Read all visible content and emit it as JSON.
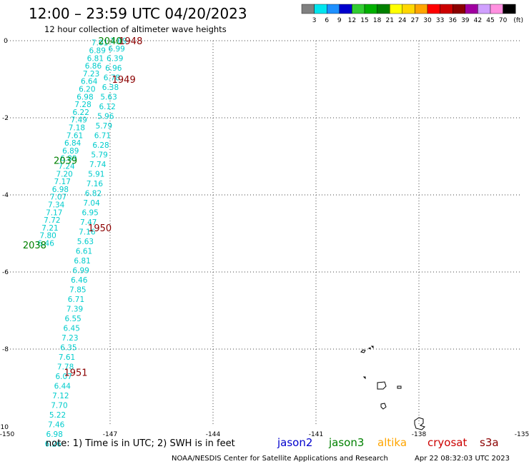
{
  "header": {
    "title": "12:00 – 23:59 UTC 04/20/2023",
    "subtitle": "12 hour collection of altimeter wave heights"
  },
  "color_scale": {
    "labels": [
      "3",
      "6",
      "9",
      "12",
      "15",
      "18",
      "21",
      "24",
      "27",
      "30",
      "33",
      "36",
      "39",
      "42",
      "45",
      "70"
    ],
    "unit": "(ft)",
    "colors": [
      "#808080",
      "#00e5ee",
      "#1e90ff",
      "#0000cd",
      "#32cd32",
      "#00b000",
      "#008000",
      "#ffff00",
      "#ffd700",
      "#ffa500",
      "#ff0000",
      "#cc0000",
      "#8b0000",
      "#a000a0",
      "#d0a0ff",
      "#ff90e0",
      "#000000"
    ]
  },
  "chart_data": {
    "type": "scatter",
    "x_ticks": [
      "-150",
      "-147",
      "-144",
      "-141",
      "-138",
      "-135"
    ],
    "y_ticks": [
      "0",
      "-2",
      "-4",
      "-6",
      "-8",
      "-10"
    ],
    "xlim": [
      -150,
      -135
    ],
    "ylim": [
      -10,
      0
    ],
    "grid": true,
    "tracks": [
      {
        "satellite": "jason3",
        "color": "#00cccc",
        "pass_labels": [
          {
            "text": "2040",
            "lon": -147.0,
            "lat": 0.0,
            "color": "#008000"
          },
          {
            "text": "2039",
            "lon": -148.3,
            "lat": -3.1,
            "color": "#008000"
          },
          {
            "text": "2038",
            "lon": -149.2,
            "lat": -5.3,
            "color": "#008000"
          }
        ],
        "points": [
          {
            "lon": -147.3,
            "lat": -0.05,
            "value": "7.01"
          },
          {
            "lon": -147.37,
            "lat": -0.25,
            "value": "6.89"
          },
          {
            "lon": -147.43,
            "lat": -0.45,
            "value": "6.81"
          },
          {
            "lon": -147.49,
            "lat": -0.65,
            "value": "6.86"
          },
          {
            "lon": -147.55,
            "lat": -0.85,
            "value": "7.23"
          },
          {
            "lon": -147.61,
            "lat": -1.05,
            "value": "6.64"
          },
          {
            "lon": -147.67,
            "lat": -1.25,
            "value": "6.20"
          },
          {
            "lon": -147.73,
            "lat": -1.45,
            "value": "6.98"
          },
          {
            "lon": -147.79,
            "lat": -1.65,
            "value": "7.28"
          },
          {
            "lon": -147.85,
            "lat": -1.85,
            "value": "6.22"
          },
          {
            "lon": -147.91,
            "lat": -2.05,
            "value": "7.49"
          },
          {
            "lon": -147.97,
            "lat": -2.25,
            "value": "7.18"
          },
          {
            "lon": -148.03,
            "lat": -2.45,
            "value": "7.61"
          },
          {
            "lon": -148.09,
            "lat": -2.65,
            "value": "6.84"
          },
          {
            "lon": -148.15,
            "lat": -2.85,
            "value": "6.89"
          },
          {
            "lon": -148.21,
            "lat": -3.05,
            "value": "6.89"
          },
          {
            "lon": -148.27,
            "lat": -3.25,
            "value": "7.24"
          },
          {
            "lon": -148.33,
            "lat": -3.45,
            "value": "7.20"
          },
          {
            "lon": -148.39,
            "lat": -3.65,
            "value": "7.17"
          },
          {
            "lon": -148.45,
            "lat": -3.85,
            "value": "6.98"
          },
          {
            "lon": -148.51,
            "lat": -4.05,
            "value": "7.07"
          },
          {
            "lon": -148.57,
            "lat": -4.25,
            "value": "7.34"
          },
          {
            "lon": -148.63,
            "lat": -4.45,
            "value": "7.17"
          },
          {
            "lon": -148.69,
            "lat": -4.65,
            "value": "7.72"
          },
          {
            "lon": -148.75,
            "lat": -4.85,
            "value": "7.21"
          },
          {
            "lon": -148.81,
            "lat": -5.05,
            "value": "7.80"
          },
          {
            "lon": -148.87,
            "lat": -5.25,
            "value": "6.46"
          }
        ]
      },
      {
        "satellite": "altika",
        "color": "#00cccc",
        "pass_labels": [],
        "points": [
          {
            "lon": -146.75,
            "lat": -0.0,
            "value": "7.09"
          },
          {
            "lon": -146.81,
            "lat": -0.2,
            "value": "6.99"
          },
          {
            "lon": -146.86,
            "lat": -0.45,
            "value": "6.39"
          },
          {
            "lon": -146.9,
            "lat": -0.7,
            "value": "6.96"
          },
          {
            "lon": -146.95,
            "lat": -0.95,
            "value": "6.78"
          },
          {
            "lon": -146.99,
            "lat": -1.2,
            "value": "6.38"
          },
          {
            "lon": -147.04,
            "lat": -1.45,
            "value": "5.63"
          },
          {
            "lon": -147.08,
            "lat": -1.7,
            "value": "6.12"
          },
          {
            "lon": -147.13,
            "lat": -1.95,
            "value": "5.96"
          },
          {
            "lon": -147.18,
            "lat": -2.2,
            "value": "5.79"
          },
          {
            "lon": -147.22,
            "lat": -2.45,
            "value": "6.71"
          },
          {
            "lon": -147.27,
            "lat": -2.7,
            "value": "6.28"
          },
          {
            "lon": -147.31,
            "lat": -2.95,
            "value": "5.79"
          },
          {
            "lon": -147.36,
            "lat": -3.2,
            "value": "7.74"
          },
          {
            "lon": -147.4,
            "lat": -3.45,
            "value": "5.91"
          },
          {
            "lon": -147.45,
            "lat": -3.7,
            "value": "7.16"
          },
          {
            "lon": -147.49,
            "lat": -3.95,
            "value": "6.82"
          },
          {
            "lon": -147.54,
            "lat": -4.2,
            "value": "7.04"
          },
          {
            "lon": -147.58,
            "lat": -4.45,
            "value": "6.95"
          },
          {
            "lon": -147.63,
            "lat": -4.7,
            "value": "7.47"
          },
          {
            "lon": -147.67,
            "lat": -4.95,
            "value": "7.16"
          },
          {
            "lon": -147.72,
            "lat": -5.2,
            "value": "5.63"
          },
          {
            "lon": -147.76,
            "lat": -5.45,
            "value": "6.61"
          },
          {
            "lon": -147.81,
            "lat": -5.7,
            "value": "6.81"
          },
          {
            "lon": -147.85,
            "lat": -5.95,
            "value": "6.99"
          },
          {
            "lon": -147.9,
            "lat": -6.2,
            "value": "6.46"
          },
          {
            "lon": -147.94,
            "lat": -6.45,
            "value": "7.85"
          },
          {
            "lon": -147.99,
            "lat": -6.7,
            "value": "6.71"
          },
          {
            "lon": -148.03,
            "lat": -6.95,
            "value": "7.39"
          },
          {
            "lon": -148.08,
            "lat": -7.2,
            "value": "6.55"
          },
          {
            "lon": -148.12,
            "lat": -7.45,
            "value": "6.45"
          },
          {
            "lon": -148.17,
            "lat": -7.7,
            "value": "7.23"
          },
          {
            "lon": -148.21,
            "lat": -7.95,
            "value": "6.35"
          },
          {
            "lon": -148.26,
            "lat": -8.2,
            "value": "7.61"
          },
          {
            "lon": -148.3,
            "lat": -8.45,
            "value": "7.78"
          },
          {
            "lon": -148.35,
            "lat": -8.7,
            "value": "6.07"
          },
          {
            "lon": -148.39,
            "lat": -8.95,
            "value": "6.44"
          },
          {
            "lon": -148.44,
            "lat": -9.2,
            "value": "7.12"
          },
          {
            "lon": -148.48,
            "lat": -9.45,
            "value": "7.70"
          },
          {
            "lon": -148.53,
            "lat": -9.7,
            "value": "5.22"
          },
          {
            "lon": -148.57,
            "lat": -9.95,
            "value": "7.46"
          },
          {
            "lon": -148.62,
            "lat": -10.2,
            "value": "6.98"
          },
          {
            "lon": -148.66,
            "lat": -10.45,
            "value": "6.26"
          }
        ]
      },
      {
        "satellite": "cryosat",
        "color": "#cc0000",
        "pass_labels": [
          {
            "text": "1948",
            "lon": -146.4,
            "lat": 0.0,
            "color": "#8b0000"
          },
          {
            "text": "1949",
            "lon": -146.6,
            "lat": -1.0,
            "color": "#8b0000"
          },
          {
            "text": "1950",
            "lon": -147.3,
            "lat": -4.85,
            "color": "#8b0000"
          },
          {
            "text": "1951",
            "lon": -148.0,
            "lat": -8.6,
            "color": "#8b0000"
          }
        ],
        "points": []
      }
    ]
  },
  "note": "note:  1) Time is in UTC;  2) SWH is in feet",
  "legend": [
    {
      "name": "jason2",
      "color": "#0000cd"
    },
    {
      "name": "jason3",
      "color": "#008000"
    },
    {
      "name": "altika",
      "color": "#ffa500"
    },
    {
      "name": "cryosat",
      "color": "#cc0000"
    },
    {
      "name": "s3a",
      "color": "#8b0000"
    }
  ],
  "credit": "NOAA/NESDIS Center for Satellite Applications and Research",
  "timestamp": "Apr 22 08:32:03 UTC 2023"
}
